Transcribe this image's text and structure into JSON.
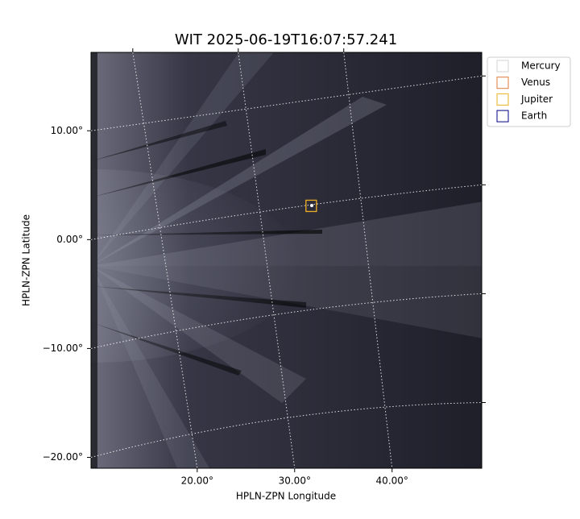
{
  "chart_data": {
    "type": "image",
    "title": "WIT 2025-06-19T16:07:57.241",
    "xlabel": "HPLN-ZPN Longitude",
    "ylabel": "HPLN-ZPN Latitude",
    "xlim": [
      9.1,
      49.2
    ],
    "ylim": [
      -21.0,
      17.2
    ],
    "xticks": [
      {
        "value": 20,
        "label": "20.00°"
      },
      {
        "value": 30,
        "label": "30.00°"
      },
      {
        "value": 40,
        "label": "40.00°"
      }
    ],
    "yticks": [
      {
        "value": 10,
        "label": "10.00°"
      },
      {
        "value": 0,
        "label": "0.00°"
      },
      {
        "value": -10,
        "label": "−10.00°"
      },
      {
        "value": -20,
        "label": "−20.00°"
      }
    ],
    "grid": true,
    "legend": "upper right",
    "series": [
      {
        "name": "Mercury",
        "color": "#d3d3d3",
        "x": [],
        "values": []
      },
      {
        "name": "Venus",
        "color": "#e07b39",
        "x": [
          31.7
        ],
        "values": [
          3.1
        ]
      },
      {
        "name": "Jupiter",
        "color": "#e8b020",
        "x": [
          31.7
        ],
        "values": [
          3.1
        ]
      },
      {
        "name": "Earth",
        "color": "#000080",
        "x": [],
        "values": []
      }
    ]
  }
}
